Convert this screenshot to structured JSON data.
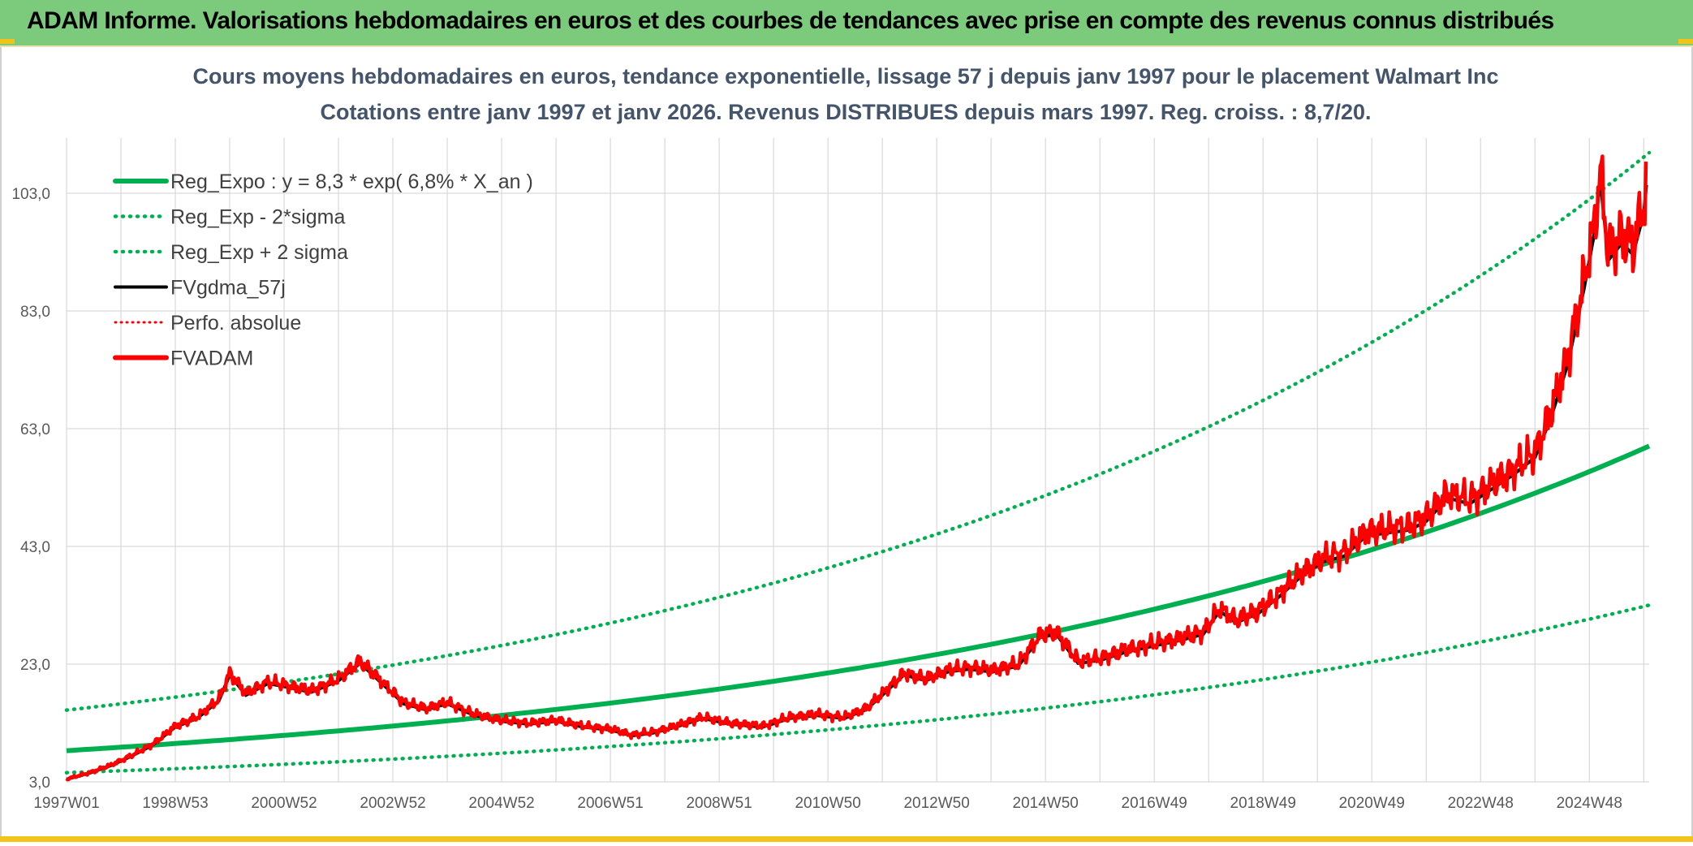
{
  "banner": {
    "title": "ADAM Informe. Valorisations hebdomadaires en euros et des courbes de tendances avec prise en compte des revenus connus distribués"
  },
  "colors": {
    "banner_bg": "#7ccb7c",
    "regression": "#00b050",
    "smoothed": "#000000",
    "fvadam": "#ff0000",
    "perfo": "#ff0000",
    "gridline": "#d9d9d9",
    "corner_accent": "#f2c318"
  },
  "chart_data": {
    "type": "line",
    "title_line1": "Cours moyens hebdomadaires en euros, tendance exponentielle, lissage 57 j depuis janv 1997 pour le placement Walmart Inc",
    "title_line2": "Cotations entre janv 1997 et janv 2026. Revenus DISTRIBUES depuis mars 1997. Reg. croiss. : 8,7/20.",
    "x_tick_labels": [
      "1997W01",
      "1998W53",
      "2000W52",
      "2002W52",
      "2004W52",
      "2006W51",
      "2008W51",
      "2010W50",
      "2012W50",
      "2014W50",
      "2016W49",
      "2018W49",
      "2020W49",
      "2022W48",
      "2024W48"
    ],
    "x_range": [
      "1997W01",
      "2026W03"
    ],
    "ylim": [
      3.0,
      111.0
    ],
    "y_ticks": [
      "3,0",
      "23,0",
      "43,0",
      "63,0",
      "83,0",
      "103,0"
    ],
    "y_tick_values": [
      3,
      23,
      43,
      63,
      83,
      103
    ],
    "grid": true,
    "legend_position": "top-left",
    "legend": [
      {
        "label": "Reg_Expo : y = 8,3 * exp( 6,8% *  X_an )",
        "style": "solid-thick",
        "color": "#00b050"
      },
      {
        "label": "Reg_Exp - 2*sigma",
        "style": "dotted",
        "color": "#00b050"
      },
      {
        "label": "Reg_Exp + 2 sigma",
        "style": "dotted",
        "color": "#00b050"
      },
      {
        "label": "FVgdma_57j",
        "style": "solid",
        "color": "#000000"
      },
      {
        "label": "Perfo. absolue",
        "style": "dotted",
        "color": "#ff0000"
      },
      {
        "label": "FVADAM",
        "style": "solid-thick",
        "color": "#ff0000"
      }
    ],
    "regression": {
      "a": 8.3,
      "rate": 0.068,
      "sigma_factor_upper": 1.83,
      "sigma_factor_lower": 0.55
    },
    "fvadam_points": [
      {
        "x": 1997.0,
        "y": 3.5
      },
      {
        "x": 1997.4,
        "y": 4.5
      },
      {
        "x": 1997.8,
        "y": 5.8
      },
      {
        "x": 1998.2,
        "y": 7.5
      },
      {
        "x": 1998.6,
        "y": 9.5
      },
      {
        "x": 1999.0,
        "y": 12.5
      },
      {
        "x": 1999.4,
        "y": 14.0
      },
      {
        "x": 1999.8,
        "y": 17.0
      },
      {
        "x": 2000.0,
        "y": 21.5
      },
      {
        "x": 2000.3,
        "y": 18.0
      },
      {
        "x": 2000.7,
        "y": 20.0
      },
      {
        "x": 2001.0,
        "y": 19.5
      },
      {
        "x": 2001.5,
        "y": 18.5
      },
      {
        "x": 2002.0,
        "y": 20.5
      },
      {
        "x": 2002.4,
        "y": 23.5
      },
      {
        "x": 2002.8,
        "y": 20.0
      },
      {
        "x": 2003.2,
        "y": 16.5
      },
      {
        "x": 2003.6,
        "y": 15.5
      },
      {
        "x": 2004.0,
        "y": 16.5
      },
      {
        "x": 2004.5,
        "y": 14.5
      },
      {
        "x": 2005.0,
        "y": 13.5
      },
      {
        "x": 2005.5,
        "y": 13.0
      },
      {
        "x": 2006.0,
        "y": 13.5
      },
      {
        "x": 2006.5,
        "y": 12.5
      },
      {
        "x": 2007.0,
        "y": 12.0
      },
      {
        "x": 2007.4,
        "y": 11.0
      },
      {
        "x": 2007.8,
        "y": 11.5
      },
      {
        "x": 2008.2,
        "y": 12.5
      },
      {
        "x": 2008.7,
        "y": 14.0
      },
      {
        "x": 2009.2,
        "y": 13.0
      },
      {
        "x": 2009.8,
        "y": 12.5
      },
      {
        "x": 2010.3,
        "y": 14.0
      },
      {
        "x": 2010.8,
        "y": 14.5
      },
      {
        "x": 2011.3,
        "y": 14.0
      },
      {
        "x": 2011.7,
        "y": 15.5
      },
      {
        "x": 2012.0,
        "y": 18.0
      },
      {
        "x": 2012.4,
        "y": 21.5
      },
      {
        "x": 2012.8,
        "y": 20.5
      },
      {
        "x": 2013.2,
        "y": 22.0
      },
      {
        "x": 2013.6,
        "y": 22.5
      },
      {
        "x": 2014.0,
        "y": 22.0
      },
      {
        "x": 2014.5,
        "y": 23.0
      },
      {
        "x": 2014.9,
        "y": 28.0
      },
      {
        "x": 2015.2,
        "y": 28.5
      },
      {
        "x": 2015.6,
        "y": 23.5
      },
      {
        "x": 2016.0,
        "y": 24.0
      },
      {
        "x": 2016.5,
        "y": 25.5
      },
      {
        "x": 2017.0,
        "y": 26.5
      },
      {
        "x": 2017.5,
        "y": 27.5
      },
      {
        "x": 2017.9,
        "y": 28.5
      },
      {
        "x": 2018.2,
        "y": 32.5
      },
      {
        "x": 2018.5,
        "y": 30.5
      },
      {
        "x": 2018.9,
        "y": 32.0
      },
      {
        "x": 2019.3,
        "y": 35.0
      },
      {
        "x": 2019.7,
        "y": 38.5
      },
      {
        "x": 2020.1,
        "y": 41.0
      },
      {
        "x": 2020.5,
        "y": 42.0
      },
      {
        "x": 2020.9,
        "y": 45.5
      },
      {
        "x": 2021.3,
        "y": 46.0
      },
      {
        "x": 2021.7,
        "y": 46.5
      },
      {
        "x": 2022.0,
        "y": 48.0
      },
      {
        "x": 2022.4,
        "y": 52.0
      },
      {
        "x": 2022.8,
        "y": 51.0
      },
      {
        "x": 2023.2,
        "y": 53.5
      },
      {
        "x": 2023.6,
        "y": 56.0
      },
      {
        "x": 2024.0,
        "y": 59.0
      },
      {
        "x": 2024.3,
        "y": 66.0
      },
      {
        "x": 2024.6,
        "y": 75.0
      },
      {
        "x": 2024.9,
        "y": 88.0
      },
      {
        "x": 2025.1,
        "y": 98.0
      },
      {
        "x": 2025.2,
        "y": 107.0
      },
      {
        "x": 2025.35,
        "y": 93.0
      },
      {
        "x": 2025.6,
        "y": 96.0
      },
      {
        "x": 2025.8,
        "y": 94.0
      },
      {
        "x": 2026.0,
        "y": 101.0
      },
      {
        "x": 2026.05,
        "y": 106.0
      }
    ]
  }
}
